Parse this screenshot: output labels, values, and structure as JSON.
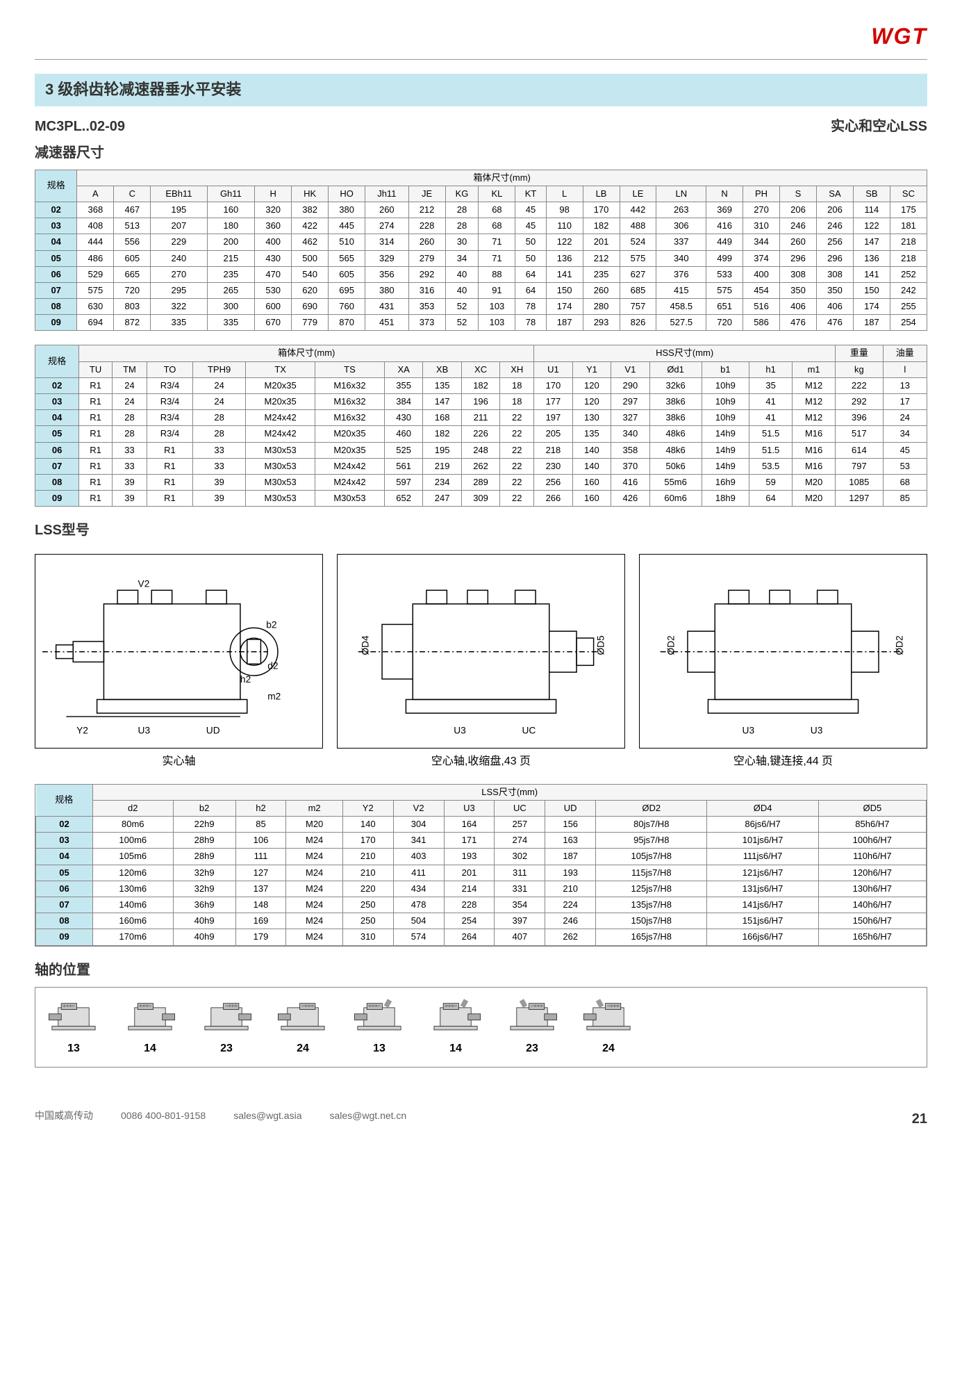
{
  "logo": "WGT",
  "section_header": "3 级斜齿轮减速器垂水平安装",
  "model_code": "MC3PL..02-09",
  "lss_type": "实心和空心LSS",
  "reducer_dim_label": "减速器尺寸",
  "table1": {
    "title": "箱体尺寸(mm)",
    "spec_label": "规格",
    "columns": [
      "A",
      "C",
      "EBh11",
      "Gh11",
      "H",
      "HK",
      "HO",
      "Jh11",
      "JE",
      "KG",
      "KL",
      "KT",
      "L",
      "LB",
      "LE",
      "LN",
      "N",
      "PH",
      "S",
      "SA",
      "SB",
      "SC"
    ],
    "rows": [
      {
        "spec": "02",
        "v": [
          "368",
          "467",
          "195",
          "160",
          "320",
          "382",
          "380",
          "260",
          "212",
          "28",
          "68",
          "45",
          "98",
          "170",
          "442",
          "263",
          "369",
          "270",
          "206",
          "206",
          "114",
          "175"
        ]
      },
      {
        "spec": "03",
        "v": [
          "408",
          "513",
          "207",
          "180",
          "360",
          "422",
          "445",
          "274",
          "228",
          "28",
          "68",
          "45",
          "110",
          "182",
          "488",
          "306",
          "416",
          "310",
          "246",
          "246",
          "122",
          "181"
        ]
      },
      {
        "spec": "04",
        "v": [
          "444",
          "556",
          "229",
          "200",
          "400",
          "462",
          "510",
          "314",
          "260",
          "30",
          "71",
          "50",
          "122",
          "201",
          "524",
          "337",
          "449",
          "344",
          "260",
          "256",
          "147",
          "218"
        ]
      },
      {
        "spec": "05",
        "v": [
          "486",
          "605",
          "240",
          "215",
          "430",
          "500",
          "565",
          "329",
          "279",
          "34",
          "71",
          "50",
          "136",
          "212",
          "575",
          "340",
          "499",
          "374",
          "296",
          "296",
          "136",
          "218"
        ]
      },
      {
        "spec": "06",
        "v": [
          "529",
          "665",
          "270",
          "235",
          "470",
          "540",
          "605",
          "356",
          "292",
          "40",
          "88",
          "64",
          "141",
          "235",
          "627",
          "376",
          "533",
          "400",
          "308",
          "308",
          "141",
          "252"
        ]
      },
      {
        "spec": "07",
        "v": [
          "575",
          "720",
          "295",
          "265",
          "530",
          "620",
          "695",
          "380",
          "316",
          "40",
          "91",
          "64",
          "150",
          "260",
          "685",
          "415",
          "575",
          "454",
          "350",
          "350",
          "150",
          "242"
        ]
      },
      {
        "spec": "08",
        "v": [
          "630",
          "803",
          "322",
          "300",
          "600",
          "690",
          "760",
          "431",
          "353",
          "52",
          "103",
          "78",
          "174",
          "280",
          "757",
          "458.5",
          "651",
          "516",
          "406",
          "406",
          "174",
          "255"
        ]
      },
      {
        "spec": "09",
        "v": [
          "694",
          "872",
          "335",
          "335",
          "670",
          "779",
          "870",
          "451",
          "373",
          "52",
          "103",
          "78",
          "187",
          "293",
          "826",
          "527.5",
          "720",
          "586",
          "476",
          "476",
          "187",
          "254"
        ]
      }
    ]
  },
  "table2": {
    "group_titles": [
      "箱体尺寸(mm)",
      "HSS尺寸(mm)",
      "重量",
      "油量"
    ],
    "spec_label": "规格",
    "columns": [
      "TU",
      "TM",
      "TO",
      "TPH9",
      "TX",
      "TS",
      "XA",
      "XB",
      "XC",
      "XH",
      "U1",
      "Y1",
      "V1",
      "Ød1",
      "b1",
      "h1",
      "m1",
      "kg",
      "l"
    ],
    "rows": [
      {
        "spec": "02",
        "v": [
          "R1",
          "24",
          "R3/4",
          "24",
          "M20x35",
          "M16x32",
          "355",
          "135",
          "182",
          "18",
          "170",
          "120",
          "290",
          "32k6",
          "10h9",
          "35",
          "M12",
          "222",
          "13"
        ]
      },
      {
        "spec": "03",
        "v": [
          "R1",
          "24",
          "R3/4",
          "24",
          "M20x35",
          "M16x32",
          "384",
          "147",
          "196",
          "18",
          "177",
          "120",
          "297",
          "38k6",
          "10h9",
          "41",
          "M12",
          "292",
          "17"
        ]
      },
      {
        "spec": "04",
        "v": [
          "R1",
          "28",
          "R3/4",
          "28",
          "M24x42",
          "M16x32",
          "430",
          "168",
          "211",
          "22",
          "197",
          "130",
          "327",
          "38k6",
          "10h9",
          "41",
          "M12",
          "396",
          "24"
        ]
      },
      {
        "spec": "05",
        "v": [
          "R1",
          "28",
          "R3/4",
          "28",
          "M24x42",
          "M20x35",
          "460",
          "182",
          "226",
          "22",
          "205",
          "135",
          "340",
          "48k6",
          "14h9",
          "51.5",
          "M16",
          "517",
          "34"
        ]
      },
      {
        "spec": "06",
        "v": [
          "R1",
          "33",
          "R1",
          "33",
          "M30x53",
          "M20x35",
          "525",
          "195",
          "248",
          "22",
          "218",
          "140",
          "358",
          "48k6",
          "14h9",
          "51.5",
          "M16",
          "614",
          "45"
        ]
      },
      {
        "spec": "07",
        "v": [
          "R1",
          "33",
          "R1",
          "33",
          "M30x53",
          "M24x42",
          "561",
          "219",
          "262",
          "22",
          "230",
          "140",
          "370",
          "50k6",
          "14h9",
          "53.5",
          "M16",
          "797",
          "53"
        ]
      },
      {
        "spec": "08",
        "v": [
          "R1",
          "39",
          "R1",
          "39",
          "M30x53",
          "M24x42",
          "597",
          "234",
          "289",
          "22",
          "256",
          "160",
          "416",
          "55m6",
          "16h9",
          "59",
          "M20",
          "1085",
          "68"
        ]
      },
      {
        "spec": "09",
        "v": [
          "R1",
          "39",
          "R1",
          "39",
          "M30x53",
          "M30x53",
          "652",
          "247",
          "309",
          "22",
          "266",
          "160",
          "426",
          "60m6",
          "18h9",
          "64",
          "M20",
          "1297",
          "85"
        ]
      }
    ]
  },
  "lss_model_label": "LSS型号",
  "diagrams": [
    {
      "caption": "实心轴",
      "labels": [
        "V2",
        "b2",
        "h2",
        "d2",
        "m2",
        "Y2",
        "U3",
        "UD"
      ]
    },
    {
      "caption": "空心轴,收缩盘,43 页",
      "labels": [
        "ØD4",
        "ØD5",
        "U3",
        "UC"
      ]
    },
    {
      "caption": "空心轴,键连接,44 页",
      "labels": [
        "ØD2",
        "ØD2",
        "U3",
        "U3"
      ]
    }
  ],
  "table3": {
    "title": "LSS尺寸(mm)",
    "spec_label": "规格",
    "columns": [
      "d2",
      "b2",
      "h2",
      "m2",
      "Y2",
      "V2",
      "U3",
      "UC",
      "UD",
      "ØD2",
      "ØD4",
      "ØD5"
    ],
    "rows": [
      {
        "spec": "02",
        "v": [
          "80m6",
          "22h9",
          "85",
          "M20",
          "140",
          "304",
          "164",
          "257",
          "156",
          "80js7/H8",
          "86js6/H7",
          "85h6/H7"
        ]
      },
      {
        "spec": "03",
        "v": [
          "100m6",
          "28h9",
          "106",
          "M24",
          "170",
          "341",
          "171",
          "274",
          "163",
          "95js7/H8",
          "101js6/H7",
          "100h6/H7"
        ]
      },
      {
        "spec": "04",
        "v": [
          "105m6",
          "28h9",
          "111",
          "M24",
          "210",
          "403",
          "193",
          "302",
          "187",
          "105js7/H8",
          "111js6/H7",
          "110h6/H7"
        ]
      },
      {
        "spec": "05",
        "v": [
          "120m6",
          "32h9",
          "127",
          "M24",
          "210",
          "411",
          "201",
          "311",
          "193",
          "115js7/H8",
          "121js6/H7",
          "120h6/H7"
        ]
      },
      {
        "spec": "06",
        "v": [
          "130m6",
          "32h9",
          "137",
          "M24",
          "220",
          "434",
          "214",
          "331",
          "210",
          "125js7/H8",
          "131js6/H7",
          "130h6/H7"
        ]
      },
      {
        "spec": "07",
        "v": [
          "140m6",
          "36h9",
          "148",
          "M24",
          "250",
          "478",
          "228",
          "354",
          "224",
          "135js7/H8",
          "141js6/H7",
          "140h6/H7"
        ]
      },
      {
        "spec": "08",
        "v": [
          "160m6",
          "40h9",
          "169",
          "M24",
          "250",
          "504",
          "254",
          "397",
          "246",
          "150js7/H8",
          "151js6/H7",
          "150h6/H7"
        ]
      },
      {
        "spec": "09",
        "v": [
          "170m6",
          "40h9",
          "179",
          "M24",
          "310",
          "574",
          "264",
          "407",
          "262",
          "165js7/H8",
          "166js6/H7",
          "165h6/H7"
        ]
      }
    ]
  },
  "shaft_pos_label": "轴的位置",
  "shaft_positions": [
    "13",
    "14",
    "23",
    "24",
    "13",
    "14",
    "23",
    "24"
  ],
  "footer": {
    "company": "中国威高传动",
    "phone": "0086 400-801-9158",
    "email1": "sales@wgt.asia",
    "email2": "sales@wgt.net.cn",
    "page": "21"
  },
  "colors": {
    "header_bg": "#c5e8f0",
    "logo_color": "#d40000",
    "border_color": "#888888",
    "text_color": "#333333"
  }
}
